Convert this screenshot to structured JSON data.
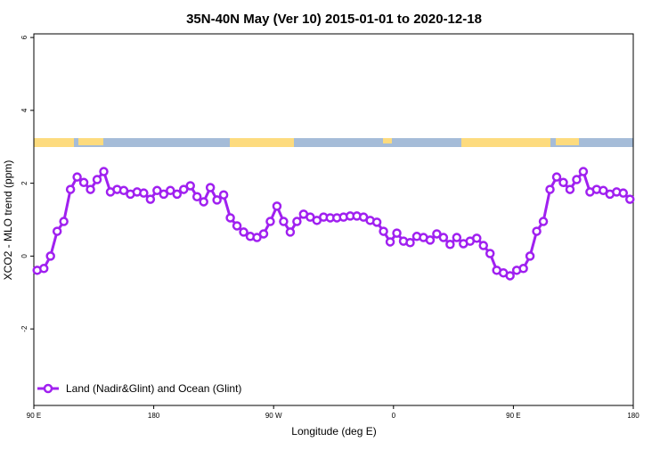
{
  "chart_data": {
    "type": "line",
    "title": "35N-40N May (Ver 10)   2015-01-01 to 2020-12-18",
    "x_label": "Longitude (deg E)",
    "y_label": "XCO2 - MLO trend (ppm)",
    "legend_position": "bottom-left",
    "xlim": [
      90,
      540
    ],
    "ylim": [
      -4.1,
      6.1
    ],
    "xticks": [
      {
        "value": 90,
        "label": "90 E"
      },
      180,
      {
        "value": 270,
        "label": "90 W"
      },
      {
        "value": 360,
        "label": "0"
      },
      {
        "value": 450,
        "label": "90 E"
      },
      {
        "value": 540,
        "label": "180"
      }
    ],
    "yticks": [
      6,
      4,
      2,
      0,
      -2
    ],
    "x": [
      92.5,
      97.5,
      102.5,
      107.5,
      112.5,
      117.5,
      122.5,
      127.5,
      132.5,
      137.5,
      142.5,
      147.5,
      152.5,
      157.5,
      162.5,
      167.5,
      172.5,
      177.5,
      182.5,
      187.5,
      192.5,
      197.5,
      202.5,
      207.5,
      212.5,
      217.5,
      222.5,
      227.5,
      232.5,
      237.5,
      242.5,
      247.5,
      252.5,
      257.5,
      262.5,
      267.5,
      272.5,
      277.5,
      282.5,
      287.5,
      292.5,
      297.5,
      302.5,
      307.5,
      312.5,
      317.5,
      322.5,
      327.5,
      332.5,
      337.5,
      342.5,
      347.5,
      352.5,
      357.5,
      362.5,
      367.5,
      372.5,
      377.5,
      382.5,
      387.5,
      392.5,
      397.5,
      402.5,
      407.5,
      412.5,
      417.5,
      422.5,
      427.5,
      432.5,
      437.5,
      442.5,
      447.5,
      452.5,
      457.5,
      462.5,
      467.5,
      472.5,
      477.5,
      482.5,
      487.5,
      492.5,
      497.5,
      502.5,
      507.5,
      512.5,
      517.5,
      522.5,
      527.5,
      532.5,
      537.5
    ],
    "series": [
      {
        "name": "Land (Nadir&Glint) and Ocean (Glint)",
        "color": "#a020f0",
        "values": [
          -0.39,
          -0.34,
          0.0,
          0.68,
          0.95,
          1.83,
          2.17,
          2.02,
          1.83,
          2.1,
          2.32,
          1.76,
          1.83,
          1.8,
          1.7,
          1.76,
          1.73,
          1.56,
          1.8,
          1.7,
          1.8,
          1.7,
          1.83,
          1.93,
          1.63,
          1.49,
          1.88,
          1.54,
          1.68,
          1.05,
          0.83,
          0.66,
          0.54,
          0.51,
          0.61,
          0.95,
          1.37,
          0.95,
          0.66,
          0.95,
          1.15,
          1.07,
          0.98,
          1.07,
          1.05,
          1.05,
          1.07,
          1.1,
          1.1,
          1.07,
          0.98,
          0.93,
          0.68,
          0.39,
          0.63,
          0.41,
          0.37,
          0.54,
          0.51,
          0.44,
          0.61,
          0.51,
          0.32,
          0.51,
          0.34,
          0.41,
          0.49,
          0.29,
          0.07,
          -0.39,
          -0.46,
          -0.54,
          -0.39,
          -0.34,
          0.0,
          0.68,
          0.95,
          1.83,
          2.17,
          2.02,
          1.83,
          2.1,
          2.32,
          1.76,
          1.83,
          1.8,
          1.7,
          1.76,
          1.73,
          1.56
        ]
      }
    ]
  }
}
